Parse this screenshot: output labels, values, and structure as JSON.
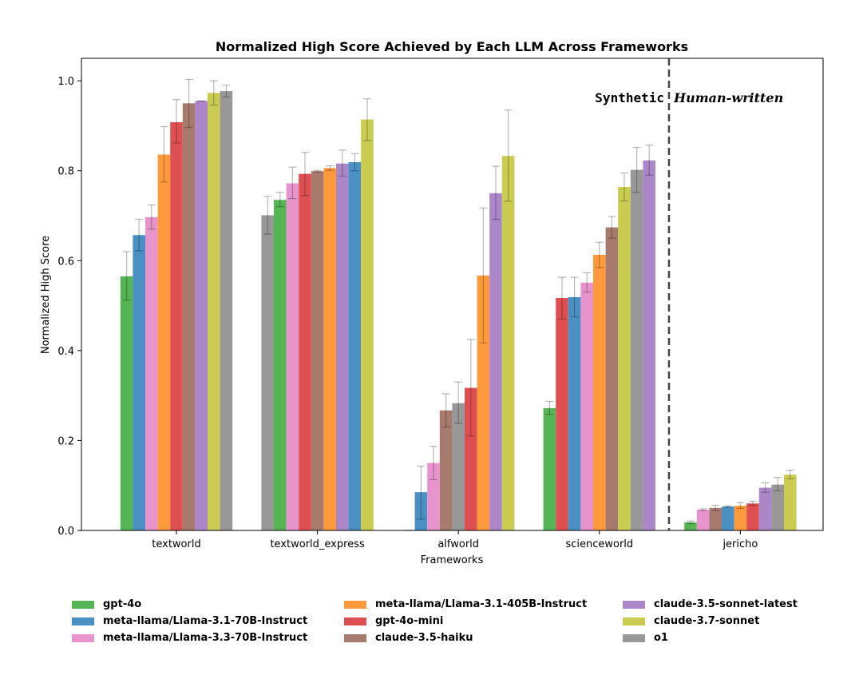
{
  "chart_data": {
    "type": "bar",
    "title": "Normalized High Score Achieved by Each LLM Across Frameworks",
    "xlabel": "Frameworks",
    "ylabel": "Normalized High Score",
    "ylim": [
      0,
      1.05
    ],
    "yticks": [
      "0.0",
      "0.2",
      "0.4",
      "0.6",
      "0.8",
      "1.0"
    ],
    "grid": false,
    "legend_position": "bottom",
    "categories": [
      "textworld",
      "textworld_express",
      "alfworld",
      "scienceworld",
      "jericho"
    ],
    "annotations": {
      "left_region": "Synthetic",
      "right_region": "Human-written"
    },
    "series": [
      {
        "name": "gpt-4o",
        "color": "#55b454"
      },
      {
        "name": "meta-llama/Llama-3.1-70B-Instruct",
        "color": "#4a90c2"
      },
      {
        "name": "meta-llama/Llama-3.3-70B-Instruct",
        "color": "#e894cc"
      },
      {
        "name": "meta-llama/Llama-3.1-405B-Instruct",
        "color": "#ff9a3c"
      },
      {
        "name": "gpt-4o-mini",
        "color": "#dd4f50"
      },
      {
        "name": "claude-3.5-haiku",
        "color": "#a77a6e"
      },
      {
        "name": "claude-3.5-sonnet-latest",
        "color": "#ab86c9"
      },
      {
        "name": "claude-3.7-sonnet",
        "color": "#c9cc50"
      },
      {
        "name": "o1",
        "color": "#989898"
      }
    ],
    "groups": [
      {
        "category": "textworld",
        "bars": [
          {
            "series": "gpt-4o",
            "value": 0.565,
            "err": [
              0.512,
              0.62
            ]
          },
          {
            "series": "meta-llama/Llama-3.1-70B-Instruct",
            "value": 0.657,
            "err": [
              0.622,
              0.692
            ]
          },
          {
            "series": "meta-llama/Llama-3.3-70B-Instruct",
            "value": 0.697,
            "err": [
              0.67,
              0.724
            ]
          },
          {
            "series": "meta-llama/Llama-3.1-405B-Instruct",
            "value": 0.836,
            "err": [
              0.775,
              0.898
            ]
          },
          {
            "series": "gpt-4o-mini",
            "value": 0.908,
            "err": [
              0.862,
              0.958
            ]
          },
          {
            "series": "claude-3.5-haiku",
            "value": 0.95,
            "err": [
              0.896,
              1.003
            ]
          },
          {
            "series": "claude-3.5-sonnet-latest",
            "value": 0.955,
            "err": [
              0.955,
              0.955
            ]
          },
          {
            "series": "claude-3.7-sonnet",
            "value": 0.973,
            "err": [
              0.946,
              1.0
            ]
          },
          {
            "series": "o1",
            "value": 0.977,
            "err": [
              0.964,
              0.99
            ]
          }
        ]
      },
      {
        "category": "textworld_express",
        "bars": [
          {
            "series": "o1",
            "value": 0.701,
            "err": [
              0.659,
              0.743
            ]
          },
          {
            "series": "gpt-4o",
            "value": 0.735,
            "err": [
              0.72,
              0.752
            ]
          },
          {
            "series": "meta-llama/Llama-3.3-70B-Instruct",
            "value": 0.772,
            "err": [
              0.738,
              0.808
            ]
          },
          {
            "series": "gpt-4o-mini",
            "value": 0.793,
            "err": [
              0.745,
              0.841
            ]
          },
          {
            "series": "claude-3.5-haiku",
            "value": 0.799,
            "err": [
              0.797,
              0.801
            ]
          },
          {
            "series": "meta-llama/Llama-3.1-405B-Instruct",
            "value": 0.806,
            "err": [
              0.801,
              0.811
            ]
          },
          {
            "series": "claude-3.5-sonnet-latest",
            "value": 0.816,
            "err": [
              0.788,
              0.846
            ]
          },
          {
            "series": "meta-llama/Llama-3.1-70B-Instruct",
            "value": 0.819,
            "err": [
              0.8,
              0.838
            ]
          },
          {
            "series": "claude-3.7-sonnet",
            "value": 0.914,
            "err": [
              0.867,
              0.96
            ]
          }
        ]
      },
      {
        "category": "alfworld",
        "bars": [
          {
            "series": "gpt-4o",
            "value": 0.0,
            "err": [
              0.0,
              0.0
            ]
          },
          {
            "series": "meta-llama/Llama-3.1-70B-Instruct",
            "value": 0.085,
            "err": [
              0.025,
              0.143
            ]
          },
          {
            "series": "meta-llama/Llama-3.3-70B-Instruct",
            "value": 0.15,
            "err": [
              0.113,
              0.187
            ]
          },
          {
            "series": "claude-3.5-haiku",
            "value": 0.267,
            "err": [
              0.23,
              0.304
            ]
          },
          {
            "series": "o1",
            "value": 0.283,
            "err": [
              0.238,
              0.33
            ]
          },
          {
            "series": "gpt-4o-mini",
            "value": 0.317,
            "err": [
              0.21,
              0.425
            ]
          },
          {
            "series": "meta-llama/Llama-3.1-405B-Instruct",
            "value": 0.567,
            "err": [
              0.417,
              0.717
            ]
          },
          {
            "series": "claude-3.5-sonnet-latest",
            "value": 0.75,
            "err": [
              0.692,
              0.81
            ]
          },
          {
            "series": "claude-3.7-sonnet",
            "value": 0.833,
            "err": [
              0.732,
              0.935
            ]
          }
        ]
      },
      {
        "category": "scienceworld",
        "bars": [
          {
            "series": "gpt-4o",
            "value": 0.272,
            "err": [
              0.258,
              0.287
            ]
          },
          {
            "series": "gpt-4o-mini",
            "value": 0.517,
            "err": [
              0.47,
              0.563
            ]
          },
          {
            "series": "meta-llama/Llama-3.1-70B-Instruct",
            "value": 0.519,
            "err": [
              0.475,
              0.563
            ]
          },
          {
            "series": "meta-llama/Llama-3.3-70B-Instruct",
            "value": 0.551,
            "err": [
              0.53,
              0.573
            ]
          },
          {
            "series": "meta-llama/Llama-3.1-405B-Instruct",
            "value": 0.613,
            "err": [
              0.585,
              0.641
            ]
          },
          {
            "series": "claude-3.5-haiku",
            "value": 0.674,
            "err": [
              0.65,
              0.698
            ]
          },
          {
            "series": "claude-3.7-sonnet",
            "value": 0.764,
            "err": [
              0.733,
              0.795
            ]
          },
          {
            "series": "o1",
            "value": 0.802,
            "err": [
              0.752,
              0.852
            ]
          },
          {
            "series": "claude-3.5-sonnet-latest",
            "value": 0.823,
            "err": [
              0.79,
              0.857
            ]
          }
        ]
      },
      {
        "category": "jericho",
        "bars": [
          {
            "series": "gpt-4o",
            "value": 0.018,
            "err": [
              0.015,
              0.021
            ]
          },
          {
            "series": "meta-llama/Llama-3.3-70B-Instruct",
            "value": 0.046,
            "err": [
              0.044,
              0.048
            ]
          },
          {
            "series": "claude-3.5-haiku",
            "value": 0.05,
            "err": [
              0.044,
              0.056
            ]
          },
          {
            "series": "meta-llama/Llama-3.1-70B-Instruct",
            "value": 0.053,
            "err": [
              0.051,
              0.055
            ]
          },
          {
            "series": "meta-llama/Llama-3.1-405B-Instruct",
            "value": 0.055,
            "err": [
              0.049,
              0.062
            ]
          },
          {
            "series": "gpt-4o-mini",
            "value": 0.06,
            "err": [
              0.056,
              0.065
            ]
          },
          {
            "series": "claude-3.5-sonnet-latest",
            "value": 0.095,
            "err": [
              0.085,
              0.106
            ]
          },
          {
            "series": "o1",
            "value": 0.102,
            "err": [
              0.088,
              0.118
            ]
          },
          {
            "series": "claude-3.7-sonnet",
            "value": 0.124,
            "err": [
              0.115,
              0.134
            ]
          }
        ]
      }
    ]
  }
}
